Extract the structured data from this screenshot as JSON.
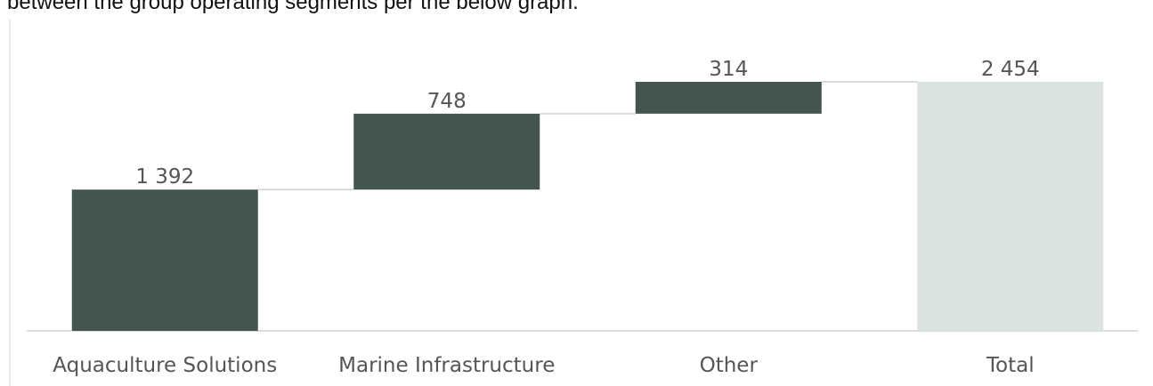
{
  "intro_text": "between the group operating segments per the below graph.",
  "chart_data": {
    "type": "bar",
    "subtype": "waterfall",
    "categories": [
      "Aquaculture Solutions",
      "Marine Infrastructure",
      "Other",
      "Total"
    ],
    "values": [
      1392,
      748,
      314,
      2454
    ],
    "value_labels": [
      "1 392",
      "748",
      "314",
      "2 454"
    ],
    "is_total": [
      false,
      false,
      false,
      true
    ],
    "ylim": [
      0,
      2454
    ],
    "grid": false,
    "legend": "none",
    "colors": {
      "increase": "#44554f",
      "total": "#dbe2df",
      "connector": "#d9d9d9",
      "axis": "#d0d0d0",
      "text": "#555555"
    }
  }
}
